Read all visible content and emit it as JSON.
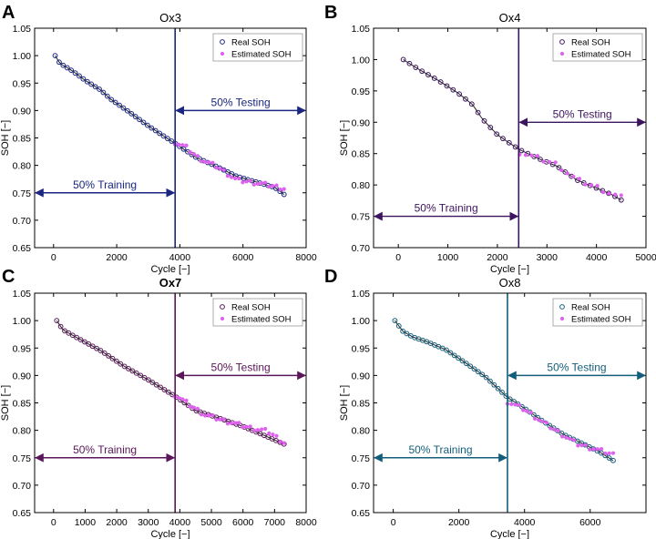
{
  "figure": {
    "y_axis_label": "SOH [−]",
    "x_axis_label": "Cycle [−]",
    "legend": {
      "real": "Real SOH",
      "estimated": "Estimated SOH"
    },
    "estimated_color": "#e060f0"
  },
  "chart_data": [
    {
      "type": "scatter",
      "panel": "A",
      "title": "Ox3",
      "xlabel": "Cycle [−]",
      "ylabel": "SOH [−]",
      "xlim": [
        -600,
        8000
      ],
      "ylim": [
        0.65,
        1.05
      ],
      "xticks": [
        0,
        2000,
        4000,
        6000,
        8000
      ],
      "yticks": [
        0.65,
        0.7,
        0.75,
        0.8,
        0.85,
        0.9,
        0.95,
        1.0,
        1.05
      ],
      "title_bold": false,
      "color": "#1a2680",
      "split_x": 3850,
      "split_y_train": 0.75,
      "split_y_test": 0.9,
      "train_label": "50%  Training",
      "test_label": "50%  Testing",
      "legend_position": "top-right",
      "real_soh": {
        "cycles": [
          50,
          7300
        ],
        "anchors": [
          [
            50,
            1.0
          ],
          [
            200,
            0.986
          ],
          [
            600,
            0.972
          ],
          [
            1000,
            0.955
          ],
          [
            1500,
            0.937
          ],
          [
            1800,
            0.921
          ],
          [
            2400,
            0.897
          ],
          [
            3000,
            0.872
          ],
          [
            3500,
            0.853
          ],
          [
            3850,
            0.84
          ],
          [
            4500,
            0.815
          ],
          [
            5200,
            0.797
          ],
          [
            5800,
            0.78
          ],
          [
            6400,
            0.77
          ],
          [
            7000,
            0.76
          ],
          [
            7300,
            0.747
          ]
        ],
        "count": 58
      },
      "estimated_soh": {
        "anchors": [
          [
            3850,
            0.842
          ],
          [
            4200,
            0.833
          ],
          [
            4600,
            0.813
          ],
          [
            5200,
            0.797
          ],
          [
            5800,
            0.773
          ],
          [
            6400,
            0.768
          ],
          [
            7000,
            0.762
          ],
          [
            7300,
            0.758
          ]
        ],
        "count": 30
      }
    },
    {
      "type": "scatter",
      "panel": "B",
      "title": "Ox4",
      "xlabel": "Cycle [−]",
      "ylabel": "SOH [−]",
      "xlim": [
        -500,
        5000
      ],
      "ylim": [
        0.7,
        1.05
      ],
      "xticks": [
        0,
        1000,
        2000,
        3000,
        4000,
        5000
      ],
      "yticks": [
        0.7,
        0.75,
        0.8,
        0.85,
        0.9,
        0.95,
        1.0,
        1.05
      ],
      "title_bold": false,
      "color": "#3d145e",
      "split_x": 2430,
      "split_y_train": 0.75,
      "split_y_test": 0.9,
      "train_label": "50%  Training",
      "test_label": "50%  Testing",
      "legend_position": "top-right",
      "real_soh": {
        "cycles": [
          100,
          4500
        ],
        "anchors": [
          [
            100,
            1.0
          ],
          [
            400,
            0.985
          ],
          [
            800,
            0.967
          ],
          [
            1200,
            0.947
          ],
          [
            1500,
            0.928
          ],
          [
            1700,
            0.905
          ],
          [
            2000,
            0.88
          ],
          [
            2430,
            0.857
          ],
          [
            2800,
            0.843
          ],
          [
            3200,
            0.83
          ],
          [
            3600,
            0.808
          ],
          [
            4000,
            0.795
          ],
          [
            4300,
            0.785
          ],
          [
            4500,
            0.776
          ]
        ],
        "count": 36
      },
      "estimated_soh": {
        "anchors": [
          [
            2450,
            0.852
          ],
          [
            2800,
            0.843
          ],
          [
            3200,
            0.833
          ],
          [
            3600,
            0.808
          ],
          [
            4000,
            0.797
          ],
          [
            4300,
            0.786
          ],
          [
            4500,
            0.78
          ]
        ],
        "count": 18
      }
    },
    {
      "type": "scatter",
      "panel": "C",
      "title": "Ox7",
      "xlabel": "Cycle [−]",
      "ylabel": "SOH [−]",
      "xlim": [
        -600,
        8000
      ],
      "ylim": [
        0.65,
        1.05
      ],
      "xticks": [
        0,
        1000,
        2000,
        3000,
        4000,
        5000,
        6000,
        7000,
        8000
      ],
      "yticks": [
        0.65,
        0.7,
        0.75,
        0.8,
        0.85,
        0.9,
        0.95,
        1.0,
        1.05
      ],
      "title_bold": true,
      "color": "#5a1658",
      "split_x": 3850,
      "split_y_train": 0.75,
      "split_y_test": 0.9,
      "train_label": "50%  Training",
      "test_label": "50%  Testing",
      "legend_position": "top-right",
      "real_soh": {
        "cycles": [
          100,
          7300
        ],
        "anchors": [
          [
            100,
            1.0
          ],
          [
            300,
            0.983
          ],
          [
            800,
            0.967
          ],
          [
            1500,
            0.945
          ],
          [
            2200,
            0.918
          ],
          [
            3000,
            0.892
          ],
          [
            3850,
            0.862
          ],
          [
            4500,
            0.836
          ],
          [
            5200,
            0.823
          ],
          [
            6000,
            0.807
          ],
          [
            6700,
            0.79
          ],
          [
            7300,
            0.775
          ]
        ],
        "count": 58
      },
      "estimated_soh": {
        "anchors": [
          [
            3850,
            0.865
          ],
          [
            4300,
            0.847
          ],
          [
            4800,
            0.828
          ],
          [
            5500,
            0.816
          ],
          [
            6200,
            0.805
          ],
          [
            6800,
            0.798
          ],
          [
            7300,
            0.778
          ]
        ],
        "count": 30
      }
    },
    {
      "type": "scatter",
      "panel": "D",
      "title": "Ox8",
      "xlabel": "Cycle [−]",
      "ylabel": "SOH [−]",
      "xlim": [
        -600,
        7700
      ],
      "ylim": [
        0.65,
        1.05
      ],
      "xticks": [
        0,
        2000,
        4000,
        6000
      ],
      "yticks": [
        0.65,
        0.7,
        0.75,
        0.8,
        0.85,
        0.9,
        0.95,
        1.0,
        1.05
      ],
      "title_bold": false,
      "color": "#135e7a",
      "split_x": 3480,
      "split_y_train": 0.75,
      "split_y_test": 0.9,
      "train_label": "50%  Training",
      "test_label": "50%  Testing",
      "legend_position": "top-right",
      "real_soh": {
        "cycles": [
          50,
          6700
        ],
        "anchors": [
          [
            50,
            1.0
          ],
          [
            300,
            0.98
          ],
          [
            600,
            0.97
          ],
          [
            1000,
            0.962
          ],
          [
            1600,
            0.947
          ],
          [
            2200,
            0.923
          ],
          [
            2800,
            0.898
          ],
          [
            3480,
            0.86
          ],
          [
            4000,
            0.84
          ],
          [
            4600,
            0.815
          ],
          [
            5200,
            0.792
          ],
          [
            5800,
            0.775
          ],
          [
            6300,
            0.76
          ],
          [
            6700,
            0.745
          ]
        ],
        "count": 56
      },
      "estimated_soh": {
        "anchors": [
          [
            3480,
            0.852
          ],
          [
            4000,
            0.838
          ],
          [
            4500,
            0.817
          ],
          [
            5000,
            0.798
          ],
          [
            5600,
            0.775
          ],
          [
            6200,
            0.765
          ],
          [
            6700,
            0.756
          ]
        ],
        "count": 28
      }
    }
  ]
}
